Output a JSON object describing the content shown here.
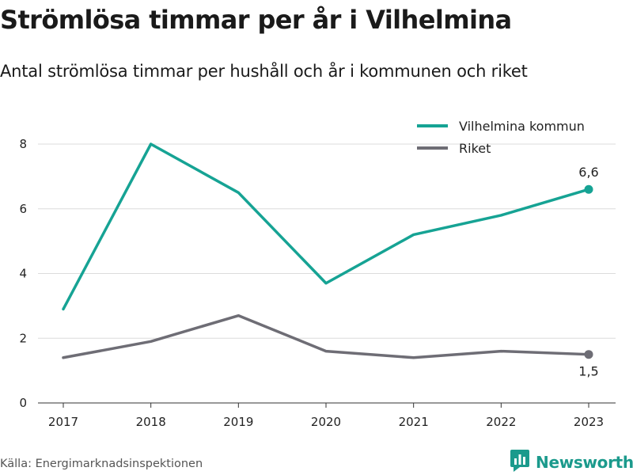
{
  "title": "Strömlösa timmar per år i Vilhelmina",
  "subtitle": "Antal strömlösa timmar per hushåll och år i kommunen och riket",
  "source": "Källa: Energimarknadsinspektionen",
  "brand": {
    "name": "Newsworthy",
    "icon": "newsworthy-logo-icon",
    "color": "#1b9a8c"
  },
  "chart_data": {
    "type": "line",
    "title": "Strömlösa timmar per år i Vilhelmina",
    "subtitle": "Antal strömlösa timmar per hushåll och år i kommunen och riket",
    "xlabel": "",
    "ylabel": "",
    "categories": [
      "2017",
      "2018",
      "2019",
      "2020",
      "2021",
      "2022",
      "2023"
    ],
    "ylim": [
      0,
      8
    ],
    "yticks": [
      0,
      2,
      4,
      6,
      8
    ],
    "grid": true,
    "legend_position": "top-right",
    "series": [
      {
        "name": "Vilhelmina kommun",
        "color": "#16a394",
        "values": [
          2.9,
          8.0,
          6.5,
          3.7,
          5.2,
          5.8,
          6.6
        ],
        "end_label": "6,6"
      },
      {
        "name": "Riket",
        "color": "#6e6d75",
        "values": [
          1.4,
          1.9,
          2.7,
          1.6,
          1.4,
          1.6,
          1.5
        ],
        "end_label": "1,5"
      }
    ]
  }
}
